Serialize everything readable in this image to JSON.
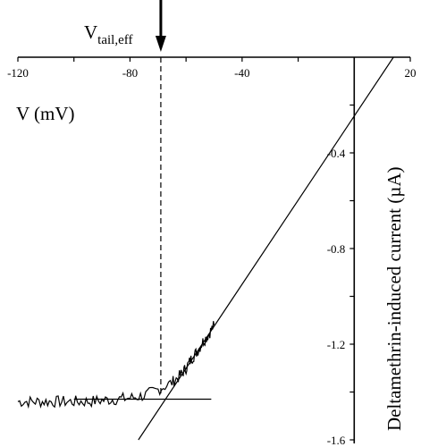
{
  "chart_data": {
    "type": "line",
    "xlabel": "V (mV)",
    "ylabel": "Deltamethrin-induced current (µA)",
    "xlim": [
      -120,
      20
    ],
    "ylim": [
      -1.6,
      0
    ],
    "x_ticks": [
      "-120",
      "-80",
      "-40",
      "20"
    ],
    "y_ticks": [
      "-0.4",
      "-0.8",
      "-1.2",
      "-1.6"
    ],
    "annotation": {
      "main": "V",
      "sub": "tail,eff",
      "x": -69
    },
    "series": [
      {
        "style": "noisy-trace",
        "x": [
          -120,
          -115,
          -110,
          -105,
          -100,
          -95,
          -90,
          -85,
          -80,
          -75,
          -70,
          -65,
          -62,
          -60,
          -58,
          -56,
          -54,
          -52,
          -50
        ],
        "y": [
          -1.44,
          -1.44,
          -1.44,
          -1.44,
          -1.44,
          -1.44,
          -1.435,
          -1.43,
          -1.425,
          -1.415,
          -1.39,
          -1.36,
          -1.33,
          -1.3,
          -1.26,
          -1.23,
          -1.19,
          -1.16,
          -1.12
        ]
      },
      {
        "style": "fit-line",
        "x": [
          -100,
          -51
        ],
        "y": [
          -1.43,
          -1.43
        ]
      },
      {
        "style": "fit-line",
        "x": [
          -77,
          14
        ],
        "y": [
          -1.6,
          0
        ]
      }
    ]
  }
}
